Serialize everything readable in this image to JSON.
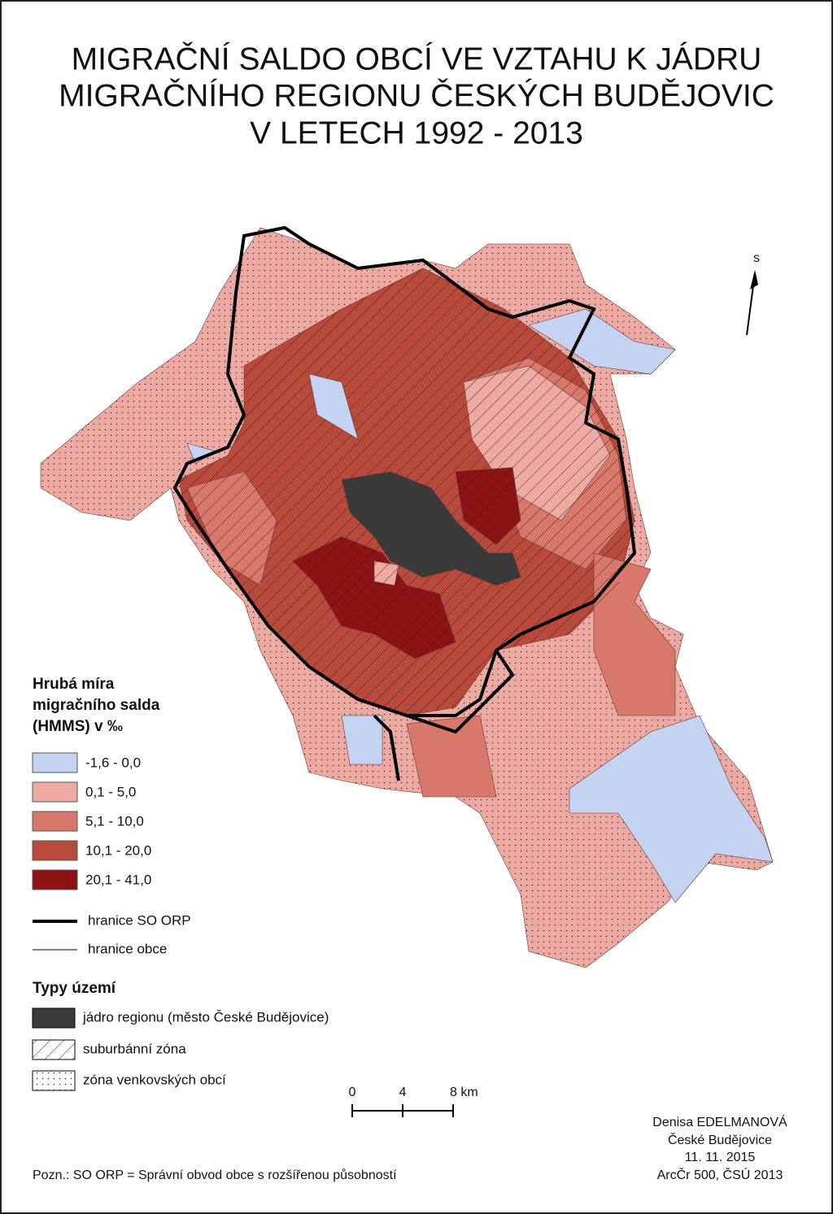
{
  "title": [
    "MIGRAČNÍ SALDO OBCÍ VE VZTAHU K JÁDRU",
    "MIGRAČNÍHO REGIONU  ČESKÝCH BUDĚJOVIC",
    "V LETECH 1992 - 2013"
  ],
  "north_arrow": "s",
  "legend": {
    "title": [
      "Hrubá míra",
      "migračního salda",
      "(HMMS) v ‰"
    ],
    "classes": [
      {
        "label": "-1,6 - 0,0",
        "color": "#c5d3f3"
      },
      {
        "label": "0,1 - 5,0",
        "color": "#ecaaa3"
      },
      {
        "label": "5,1 - 10,0",
        "color": "#d8786a"
      },
      {
        "label": "10,1 - 20,0",
        "color": "#b84a3c"
      },
      {
        "label": "20,1 - 41,0",
        "color": "#8c1216"
      }
    ],
    "lines": [
      "hranice SO ORP",
      "hranice obce"
    ]
  },
  "zones": {
    "title": "Typy území",
    "items": [
      "jádro regionu (město České Budějovice)",
      "suburbánní zóna",
      "zóna venkovských obcí"
    ]
  },
  "scale_bar": [
    "0",
    "4",
    "8 km"
  ],
  "credits": [
    "Denisa EDELMANOVÁ",
    "České Budějovice",
    "11. 11. 2015",
    "ArcČr 500, ČSÚ 2013"
  ],
  "note": "Pozn.: SO ORP = Správní obvod obce s rozšířenou působností"
}
